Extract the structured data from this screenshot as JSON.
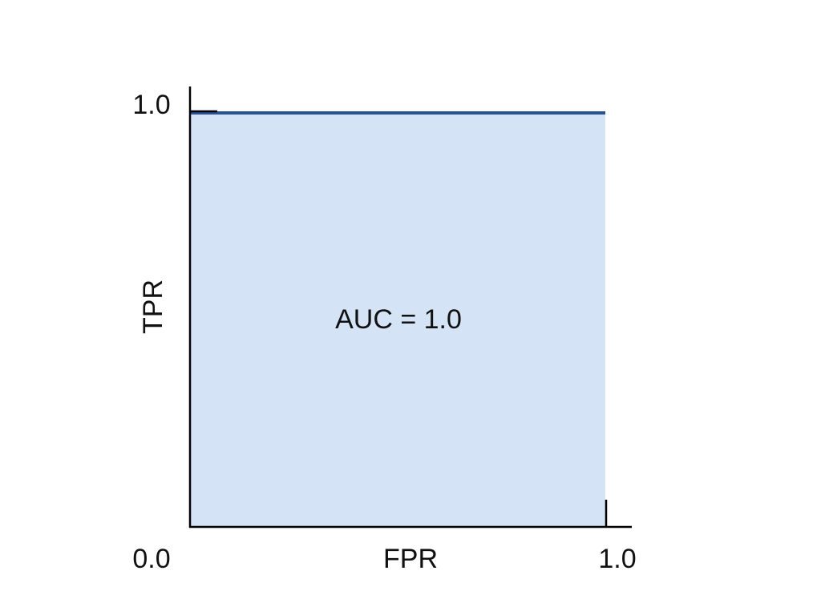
{
  "chart_data": {
    "type": "area",
    "title": "",
    "xlabel": "FPR",
    "ylabel": "TPR",
    "xlim": [
      0.0,
      1.0
    ],
    "ylim": [
      0.0,
      1.0
    ],
    "x_tick_labels": [
      "0.0",
      "1.0"
    ],
    "y_tick_labels": [
      "1.0"
    ],
    "grid": false,
    "series": [
      {
        "x": [
          0.0,
          1.0
        ],
        "y": [
          1.0,
          1.0
        ]
      }
    ],
    "annotation": "AUC = 1.0",
    "colors": {
      "line": "#2451a0",
      "fill": "#d4e3f5",
      "axis": "#000000"
    }
  }
}
